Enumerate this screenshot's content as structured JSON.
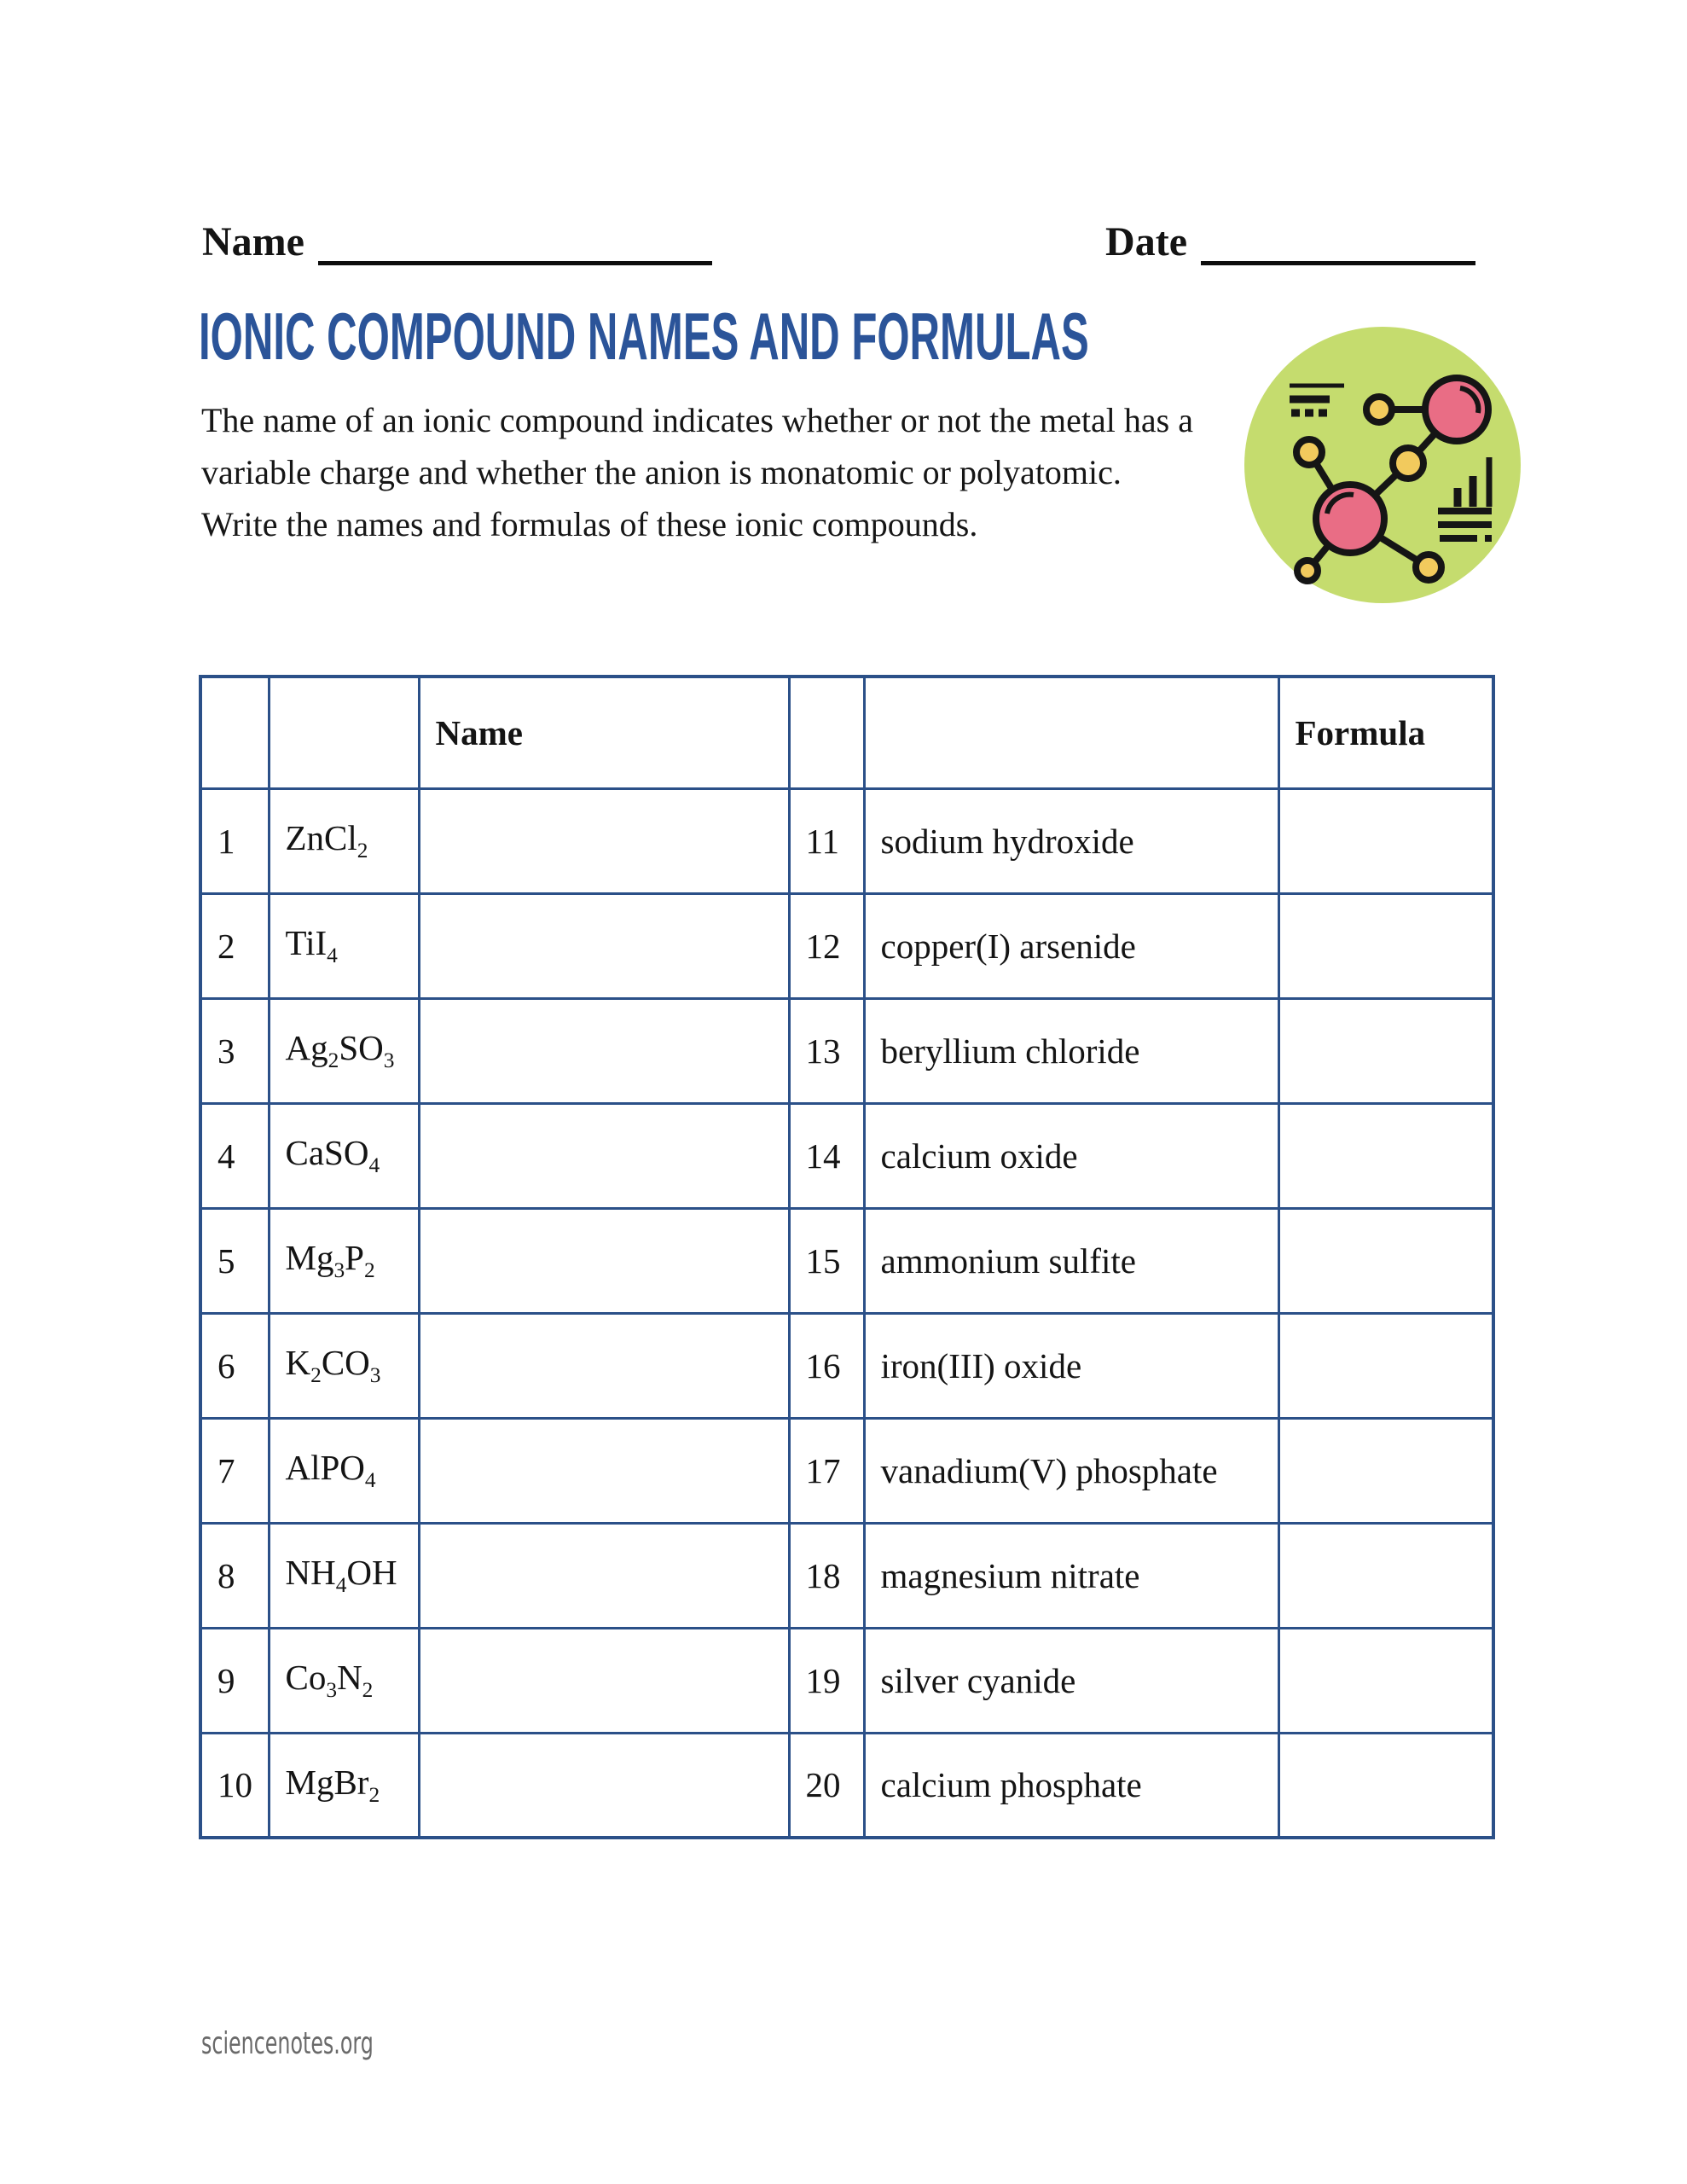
{
  "header": {
    "name_label": "Name",
    "date_label": "Date"
  },
  "title": "IONIC COMPOUND NAMES AND FORMULAS",
  "intro": "The name of an ionic compound indicates whether or not the metal has a variable charge and whether the anion is monatomic or polyatomic. Write the names and formulas of these ionic compounds.",
  "icon": {
    "label": "molecule-icon",
    "colors": {
      "bg": "#c5dc6e",
      "pink": "#e96d85",
      "yellow": "#f2ca5d",
      "outline": "#151515"
    }
  },
  "table": {
    "name_header": "Name",
    "formula_header": "Formula",
    "rows": [
      {
        "n": "1",
        "formula": "ZnCl_2",
        "m": "11",
        "compound": "sodium hydroxide"
      },
      {
        "n": "2",
        "formula": "TiI_4",
        "m": "12",
        "compound": "copper(I) arsenide"
      },
      {
        "n": "3",
        "formula": "Ag_2SO_3",
        "m": "13",
        "compound": "beryllium chloride"
      },
      {
        "n": "4",
        "formula": "CaSO_4",
        "m": "14",
        "compound": "calcium oxide"
      },
      {
        "n": "5",
        "formula": "Mg_3P_2",
        "m": "15",
        "compound": "ammonium sulfite"
      },
      {
        "n": "6",
        "formula": "K_2CO_3",
        "m": "16",
        "compound": "iron(III) oxide"
      },
      {
        "n": "7",
        "formula": "AlPO_4",
        "m": "17",
        "compound": "vanadium(V) phosphate"
      },
      {
        "n": "8",
        "formula": "NH_4OH",
        "m": "18",
        "compound": "magnesium nitrate"
      },
      {
        "n": "9",
        "formula": "Co_3N_2",
        "m": "19",
        "compound": "silver cyanide"
      },
      {
        "n": "10",
        "formula": "MgBr_2",
        "m": "20",
        "compound": "calcium phosphate"
      }
    ]
  },
  "footer": "sciencenotes.org",
  "colors": {
    "title_blue": "#2b5499",
    "table_border": "#2b5088",
    "footer_gray": "#6a6a6a"
  }
}
